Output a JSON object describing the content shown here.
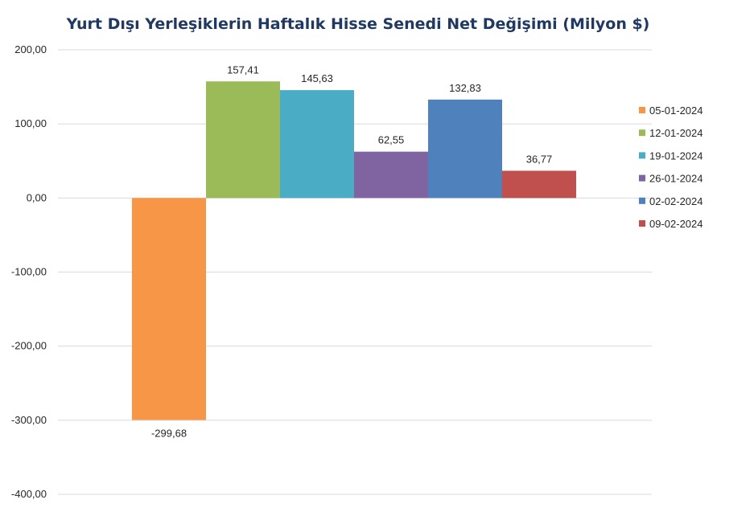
{
  "chart_data": {
    "type": "bar",
    "title": "Yurt Dışı Yerleşiklerin Haftalık Hisse Senedi Net Değişimi (Milyon $)",
    "xlabel": "",
    "ylabel": "",
    "ylim": [
      -400,
      200
    ],
    "yticks": [
      "-400,00",
      "-300,00",
      "-200,00",
      "-100,00",
      "0,00",
      "100,00",
      "200,00"
    ],
    "grid": true,
    "legend_position": "right",
    "series": [
      {
        "name": "05-01-2024",
        "value": -299.68,
        "label": "-299,68",
        "color": "#f79646"
      },
      {
        "name": "12-01-2024",
        "value": 157.41,
        "label": "157,41",
        "color": "#9bbb59"
      },
      {
        "name": "19-01-2024",
        "value": 145.63,
        "label": "145,63",
        "color": "#4bacc6"
      },
      {
        "name": "26-01-2024",
        "value": 62.55,
        "label": "62,55",
        "color": "#8064a2"
      },
      {
        "name": "02-02-2024",
        "value": 132.83,
        "label": "132,83",
        "color": "#4f81bd"
      },
      {
        "name": "09-02-2024",
        "value": 36.77,
        "label": "36,77",
        "color": "#c0504d"
      }
    ]
  }
}
